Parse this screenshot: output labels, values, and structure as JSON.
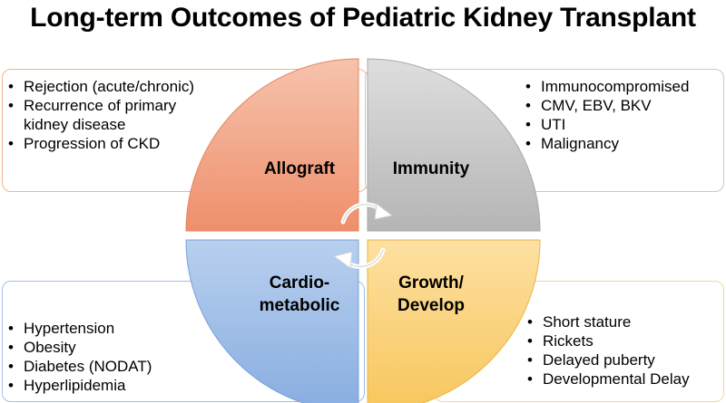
{
  "title": "Long-term Outcomes of Pediatric Kidney Transplant",
  "quadrants": {
    "allograft": {
      "label": "Allograft",
      "color": "#f2a283",
      "items": [
        "Rejection (acute/chronic)",
        "Recurrence of primary kidney disease",
        "Progression of CKD"
      ]
    },
    "immunity": {
      "label": "Immunity",
      "color": "#c4c4c4",
      "items": [
        "Immunocompromised",
        "CMV, EBV, BKV",
        "UTI",
        "Malignancy"
      ]
    },
    "cardiometabolic": {
      "label_line1": "Cardio-",
      "label_line2": "metabolic",
      "color": "#9dbde6",
      "items": [
        "Hypertension",
        "Obesity",
        "Diabetes (NODAT)",
        "Hyperlipidemia"
      ]
    },
    "growth": {
      "label_line1": "Growth/",
      "label_line2": "Develop",
      "color": "#fbd27c",
      "items": [
        "Short stature",
        "Rickets",
        "Delayed puberty",
        "Developmental Delay"
      ]
    }
  },
  "icons": {
    "center": "cycle-arrows-icon"
  }
}
